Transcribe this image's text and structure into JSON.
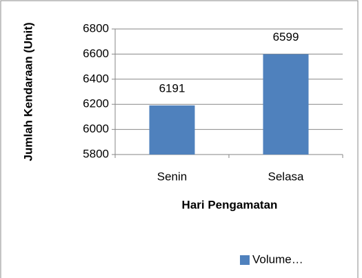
{
  "chart_data": {
    "type": "bar",
    "categories": [
      "Senin",
      "Selasa"
    ],
    "series": [
      {
        "name": "Volume…",
        "color": "#4f81bd",
        "values": [
          6191,
          6599
        ]
      }
    ],
    "xlabel": "Hari Pengamatan",
    "ylabel": "Jumlah Kendaraan (Unit)",
    "ylim": [
      5800,
      6800
    ],
    "yticks": [
      5800,
      6000,
      6200,
      6400,
      6600,
      6800
    ],
    "grid": true,
    "legend": "bottom"
  }
}
